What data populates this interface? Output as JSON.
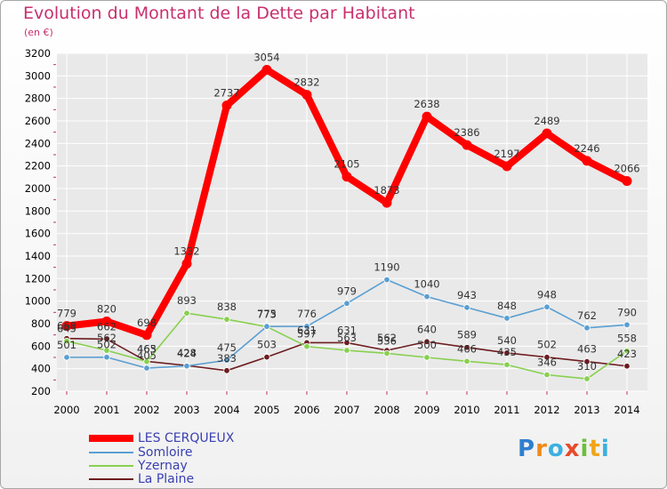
{
  "title": "Evolution du Montant de la Dette par Habitant",
  "subtitle": "(en €)",
  "logo": "Proxiti",
  "chart_data": {
    "type": "line",
    "x": [
      "2000",
      "2001",
      "2002",
      "2003",
      "2004",
      "2005",
      "2006",
      "2007",
      "2008",
      "2009",
      "2010",
      "2011",
      "2012",
      "2013",
      "2014"
    ],
    "ylim": [
      200,
      3200
    ],
    "yticks": [
      200,
      400,
      600,
      800,
      1000,
      1200,
      1400,
      1600,
      1800,
      2000,
      2200,
      2400,
      2600,
      2800,
      3000,
      3200
    ],
    "grid": true,
    "legend_position": "bottom-left",
    "series": [
      {
        "name": "LES CERQUEUX",
        "color": "#ff0000",
        "values": [
          779,
          820,
          698,
          1332,
          2737,
          3054,
          2832,
          2105,
          1873,
          2638,
          2386,
          2197,
          2489,
          2246,
          2066
        ]
      },
      {
        "name": "Somloire",
        "color": "#5a9fd2",
        "values": [
          501,
          502,
          405,
          424,
          475,
          775,
          776,
          979,
          1190,
          1040,
          943,
          848,
          948,
          762,
          790
        ]
      },
      {
        "name": "Yzernay",
        "color": "#88d050",
        "values": [
          645,
          562,
          463,
          893,
          838,
          773,
          597,
          563,
          536,
          500,
          466,
          435,
          346,
          310,
          558
        ]
      },
      {
        "name": "La Plaine",
        "color": "#6d1c20",
        "values": [
          668,
          662,
          465,
          428,
          383,
          503,
          631,
          631,
          562,
          640,
          589,
          540,
          502,
          463,
          423
        ]
      }
    ]
  }
}
